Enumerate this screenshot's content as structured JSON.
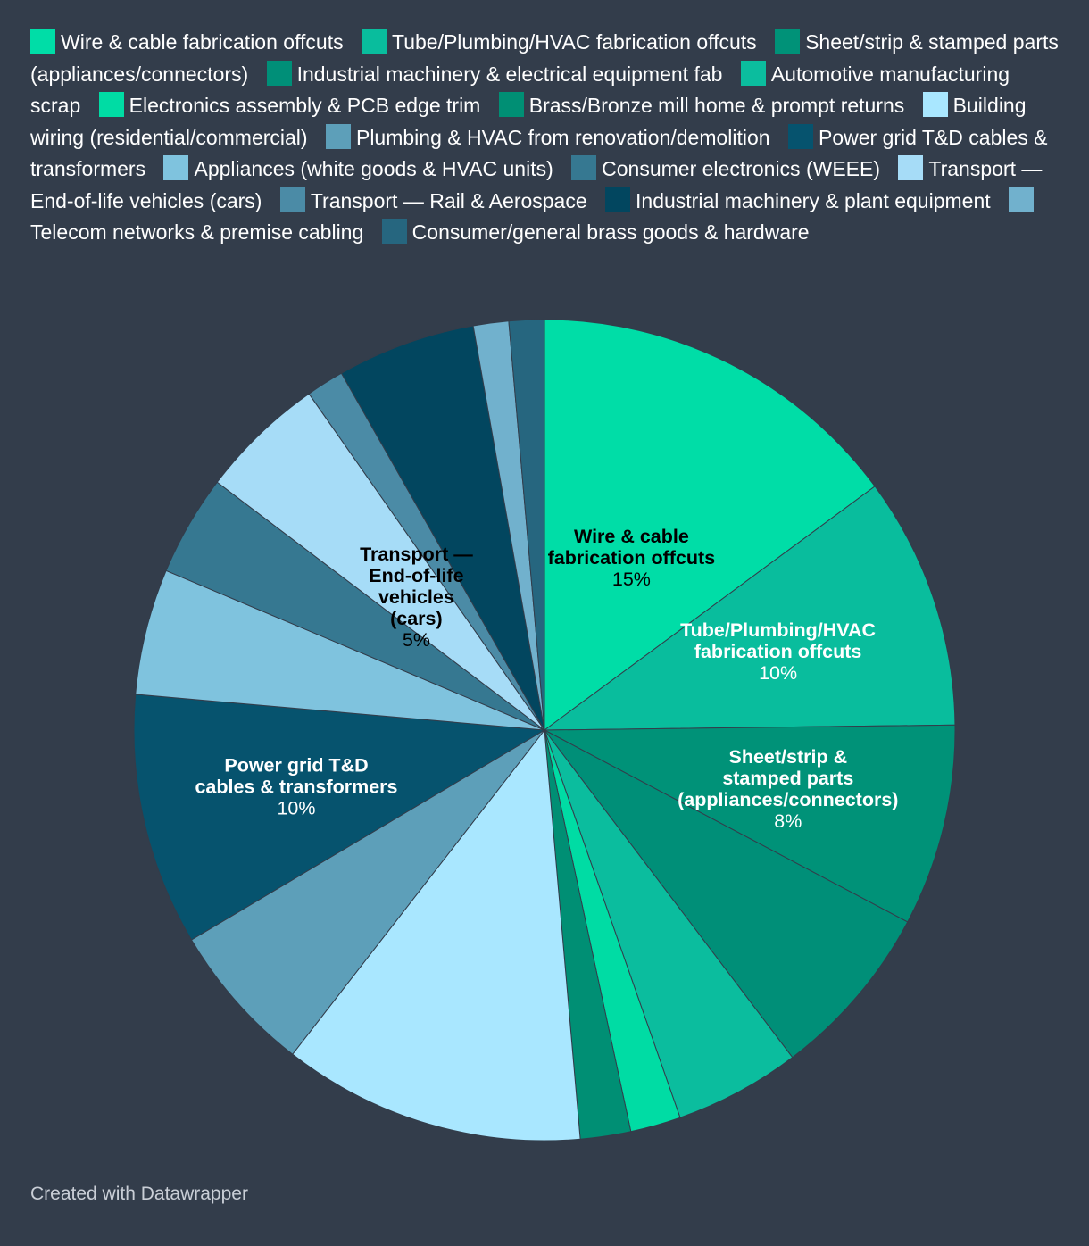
{
  "chart_data": {
    "type": "pie",
    "title": "",
    "slices": [
      {
        "name": "Wire & cable fabrication offcuts",
        "value": 15,
        "color": "#00dda7",
        "label": "Wire & cable fabrication offcuts",
        "label_lines": [
          "Wire & cable",
          "fabrication offcuts"
        ],
        "pct_label": "15%",
        "label_color": "#000000"
      },
      {
        "name": "Tube/Plumbing/HVAC fabrication offcuts",
        "value": 10,
        "color": "#09bd9d",
        "label": "Tube/Plumbing/HVAC fabrication offcuts",
        "label_lines": [
          "Tube/Plumbing/HVAC",
          "fabrication offcuts"
        ],
        "pct_label": "10%",
        "label_color": "#ffffff"
      },
      {
        "name": "Sheet/strip & stamped parts (appliances/connectors)",
        "value": 8,
        "color": "#009278",
        "label": "Sheet/strip & stamped parts (appliances/connectors)",
        "label_lines": [
          "Sheet/strip &",
          "stamped parts",
          "(appliances/connectors)"
        ],
        "pct_label": "8%",
        "label_color": "#ffffff"
      },
      {
        "name": "Industrial machinery & electrical equipment fab",
        "value": 7,
        "color": "#008f78",
        "label": "",
        "label_lines": [],
        "pct_label": ""
      },
      {
        "name": "Automotive manufacturing scrap",
        "value": 5,
        "color": "#0bbd9e",
        "label": "",
        "label_lines": [],
        "pct_label": ""
      },
      {
        "name": "Electronics assembly & PCB edge trim",
        "value": 2,
        "color": "#00dca4",
        "label": "",
        "label_lines": [],
        "pct_label": ""
      },
      {
        "name": "Brass/Bronze mill home & prompt returns",
        "value": 2,
        "color": "#008f74",
        "label": "",
        "label_lines": [],
        "pct_label": ""
      },
      {
        "name": "Building wiring (residential/commercial)",
        "value": 12,
        "color": "#a9e7ff",
        "label": "",
        "label_lines": [],
        "pct_label": ""
      },
      {
        "name": "Plumbing & HVAC from renovation/demolition",
        "value": 6,
        "color": "#5d9fb9",
        "label": "",
        "label_lines": [],
        "pct_label": ""
      },
      {
        "name": "Power grid T&D cables & transformers",
        "value": 10,
        "color": "#06536e",
        "label": "Power grid T&D cables & transformers",
        "label_lines": [
          "Power grid T&D",
          "cables & transformers"
        ],
        "pct_label": "10%",
        "label_color": "#ffffff"
      },
      {
        "name": "Appliances (white goods & HVAC units)",
        "value": 5,
        "color": "#7fc3de",
        "label": "",
        "label_lines": [],
        "pct_label": ""
      },
      {
        "name": "Consumer electronics (WEEE)",
        "value": 4,
        "color": "#367891",
        "label": "",
        "label_lines": [],
        "pct_label": ""
      },
      {
        "name": "Transport — End-of-life vehicles (cars)",
        "value": 5,
        "color": "#a6dcf7",
        "label": "Transport — End-of-life vehicles (cars)",
        "label_lines": [
          "Transport —",
          "End-of-life",
          "vehicles",
          "(cars)"
        ],
        "pct_label": "5%",
        "label_color": "#000000"
      },
      {
        "name": "Transport — Rail & Aerospace",
        "value": 1.5,
        "color": "#4b8ba6",
        "label": "",
        "label_lines": [],
        "pct_label": ""
      },
      {
        "name": "Industrial machinery & plant equipment",
        "value": 5.5,
        "color": "#02465f",
        "label": "",
        "label_lines": [],
        "pct_label": ""
      },
      {
        "name": "Telecom networks & premise cabling",
        "value": 1.4,
        "color": "#71b1cd",
        "label": "",
        "label_lines": [],
        "pct_label": ""
      },
      {
        "name": "Consumer/general brass goods & hardware",
        "value": 1.4,
        "color": "#26667f",
        "label": "",
        "label_lines": [],
        "pct_label": ""
      }
    ],
    "legend_placement": "top",
    "stroke_color": "#333d4b"
  },
  "footer": {
    "credit": "Created with Datawrapper"
  }
}
